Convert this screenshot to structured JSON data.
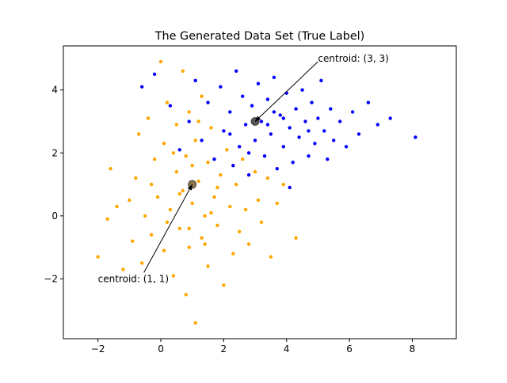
{
  "chart_data": {
    "type": "scatter",
    "title": "The Generated Data Set (True Label)",
    "xlabel": "",
    "ylabel": "",
    "xlim": [
      -3.1,
      9.4
    ],
    "ylim": [
      -3.9,
      5.4
    ],
    "xticks": [
      -2,
      0,
      2,
      4,
      6,
      8
    ],
    "yticks": [
      -2,
      0,
      2,
      4
    ],
    "xtick_labels": [
      "−2",
      "0",
      "2",
      "4",
      "6",
      "8"
    ],
    "ytick_labels": [
      "−2",
      "0",
      "2",
      "4"
    ],
    "grid": false,
    "series": [
      {
        "color": "#ffa500",
        "points": [
          [
            -2.0,
            -1.3
          ],
          [
            -1.7,
            -0.1
          ],
          [
            -1.6,
            1.5
          ],
          [
            -1.4,
            0.3
          ],
          [
            -1.2,
            -1.7
          ],
          [
            -1.0,
            0.5
          ],
          [
            -0.9,
            -0.8
          ],
          [
            -0.8,
            1.2
          ],
          [
            -0.7,
            2.6
          ],
          [
            -0.6,
            -1.5
          ],
          [
            -0.5,
            0.0
          ],
          [
            -0.4,
            3.1
          ],
          [
            -0.3,
            -0.6
          ],
          [
            -0.2,
            1.8
          ],
          [
            -0.1,
            0.6
          ],
          [
            0.0,
            4.9
          ],
          [
            0.1,
            -1.1
          ],
          [
            0.1,
            2.3
          ],
          [
            0.2,
            3.6
          ],
          [
            0.3,
            0.2
          ],
          [
            0.4,
            -1.9
          ],
          [
            0.5,
            1.4
          ],
          [
            0.5,
            2.9
          ],
          [
            0.6,
            -0.4
          ],
          [
            0.7,
            4.6
          ],
          [
            0.7,
            0.8
          ],
          [
            0.8,
            -2.5
          ],
          [
            0.8,
            1.9
          ],
          [
            0.9,
            3.3
          ],
          [
            0.9,
            -1.0
          ],
          [
            1.0,
            0.4
          ],
          [
            1.1,
            2.4
          ],
          [
            1.1,
            -3.4
          ],
          [
            1.2,
            1.1
          ],
          [
            1.3,
            -0.7
          ],
          [
            1.3,
            3.8
          ],
          [
            1.4,
            0.0
          ],
          [
            1.5,
            1.7
          ],
          [
            1.5,
            -1.6
          ],
          [
            1.6,
            2.8
          ],
          [
            1.7,
            0.6
          ],
          [
            1.8,
            -0.3
          ],
          [
            1.9,
            1.3
          ],
          [
            2.0,
            -2.2
          ],
          [
            2.1,
            2.1
          ],
          [
            2.2,
            0.3
          ],
          [
            2.3,
            -1.2
          ],
          [
            2.4,
            1.0
          ],
          [
            2.5,
            -0.5
          ],
          [
            2.6,
            1.8
          ],
          [
            2.7,
            0.2
          ],
          [
            2.8,
            -0.9
          ],
          [
            3.0,
            1.4
          ],
          [
            3.1,
            0.5
          ],
          [
            3.2,
            -0.2
          ],
          [
            3.4,
            1.2
          ],
          [
            3.5,
            -1.3
          ],
          [
            3.7,
            0.4
          ],
          [
            3.9,
            1.0
          ],
          [
            4.3,
            -0.7
          ],
          [
            -0.3,
            1.0
          ],
          [
            0.2,
            -0.2
          ],
          [
            0.6,
            0.7
          ],
          [
            1.0,
            1.6
          ],
          [
            1.4,
            -0.9
          ],
          [
            1.8,
            0.9
          ],
          [
            0.4,
            2.0
          ],
          [
            1.2,
            3.0
          ],
          [
            0.9,
            -0.4
          ],
          [
            1.6,
            0.1
          ]
        ]
      },
      {
        "color": "#0000ff",
        "points": [
          [
            -0.6,
            4.1
          ],
          [
            -0.2,
            4.5
          ],
          [
            0.3,
            3.5
          ],
          [
            0.6,
            2.1
          ],
          [
            0.9,
            3.0
          ],
          [
            1.1,
            4.3
          ],
          [
            1.3,
            2.4
          ],
          [
            1.5,
            3.6
          ],
          [
            1.7,
            1.8
          ],
          [
            1.9,
            4.1
          ],
          [
            2.0,
            2.7
          ],
          [
            2.2,
            3.3
          ],
          [
            2.3,
            1.6
          ],
          [
            2.4,
            4.6
          ],
          [
            2.5,
            2.2
          ],
          [
            2.6,
            3.8
          ],
          [
            2.7,
            2.9
          ],
          [
            2.8,
            1.3
          ],
          [
            2.9,
            3.5
          ],
          [
            3.0,
            2.4
          ],
          [
            3.1,
            4.2
          ],
          [
            3.2,
            3.0
          ],
          [
            3.3,
            1.9
          ],
          [
            3.4,
            3.7
          ],
          [
            3.5,
            2.6
          ],
          [
            3.6,
            4.4
          ],
          [
            3.7,
            1.5
          ],
          [
            3.8,
            3.2
          ],
          [
            3.9,
            2.2
          ],
          [
            4.0,
            3.9
          ],
          [
            4.1,
            2.8
          ],
          [
            4.2,
            1.7
          ],
          [
            4.3,
            3.4
          ],
          [
            4.4,
            2.5
          ],
          [
            4.5,
            4.0
          ],
          [
            4.6,
            3.0
          ],
          [
            4.7,
            1.9
          ],
          [
            4.8,
            3.6
          ],
          [
            4.9,
            2.3
          ],
          [
            5.0,
            3.1
          ],
          [
            5.1,
            4.3
          ],
          [
            5.2,
            2.7
          ],
          [
            5.3,
            1.8
          ],
          [
            5.4,
            3.4
          ],
          [
            5.5,
            2.4
          ],
          [
            5.7,
            3.0
          ],
          [
            5.9,
            2.2
          ],
          [
            6.1,
            3.3
          ],
          [
            6.3,
            2.6
          ],
          [
            6.6,
            3.6
          ],
          [
            6.9,
            2.9
          ],
          [
            7.3,
            3.1
          ],
          [
            8.1,
            2.5
          ],
          [
            4.1,
            0.9
          ],
          [
            2.8,
            2.0
          ],
          [
            3.4,
            2.9
          ],
          [
            3.9,
            3.1
          ],
          [
            2.2,
            2.6
          ],
          [
            4.7,
            2.7
          ],
          [
            3.6,
            3.3
          ]
        ]
      }
    ],
    "centroids": [
      {
        "x": 1,
        "y": 1,
        "color": "#7a5a2e"
      },
      {
        "x": 3,
        "y": 3,
        "color": "#3a3a3a"
      }
    ],
    "annotations": [
      {
        "text": "centroid: (1, 1)",
        "xy": [
          1,
          1
        ],
        "xytext": [
          -2,
          -2
        ]
      },
      {
        "text": "centroid: (3, 3)",
        "xy": [
          3,
          3
        ],
        "xytext": [
          5,
          5
        ]
      }
    ]
  }
}
